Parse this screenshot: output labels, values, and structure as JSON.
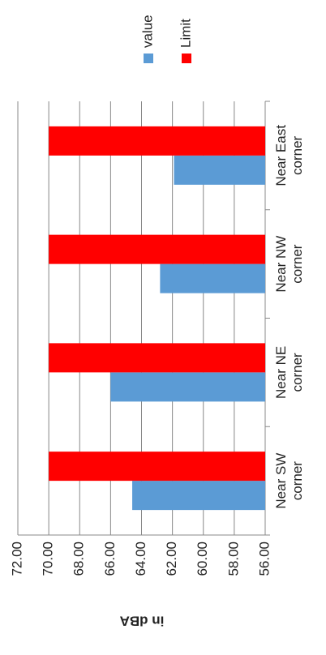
{
  "chart_data": {
    "type": "bar",
    "y_label": "in dBA",
    "categories": [
      "Near SW corner",
      "Near NE corner",
      "Near NW corner",
      "Near East corner"
    ],
    "series": [
      {
        "name": "value",
        "color": "#5b9bd5",
        "values": [
          64.6,
          66.0,
          62.8,
          61.9
        ]
      },
      {
        "name": "Limit",
        "color": "#ff0000",
        "values": [
          70,
          70,
          70,
          70
        ]
      }
    ],
    "ylim": [
      56,
      72
    ],
    "yticks": [
      {
        "value": 56,
        "label": "56.00"
      },
      {
        "value": 58,
        "label": "58.00"
      },
      {
        "value": 60,
        "label": "60.00"
      },
      {
        "value": 62,
        "label": "62.00"
      },
      {
        "value": 64,
        "label": "64.00"
      },
      {
        "value": 66,
        "label": "66.00"
      },
      {
        "value": 68,
        "label": "68.00"
      },
      {
        "value": 70,
        "label": "70.00"
      },
      {
        "value": 72,
        "label": "72.00"
      }
    ],
    "grid": true,
    "legend": "right",
    "rotation": -90
  }
}
